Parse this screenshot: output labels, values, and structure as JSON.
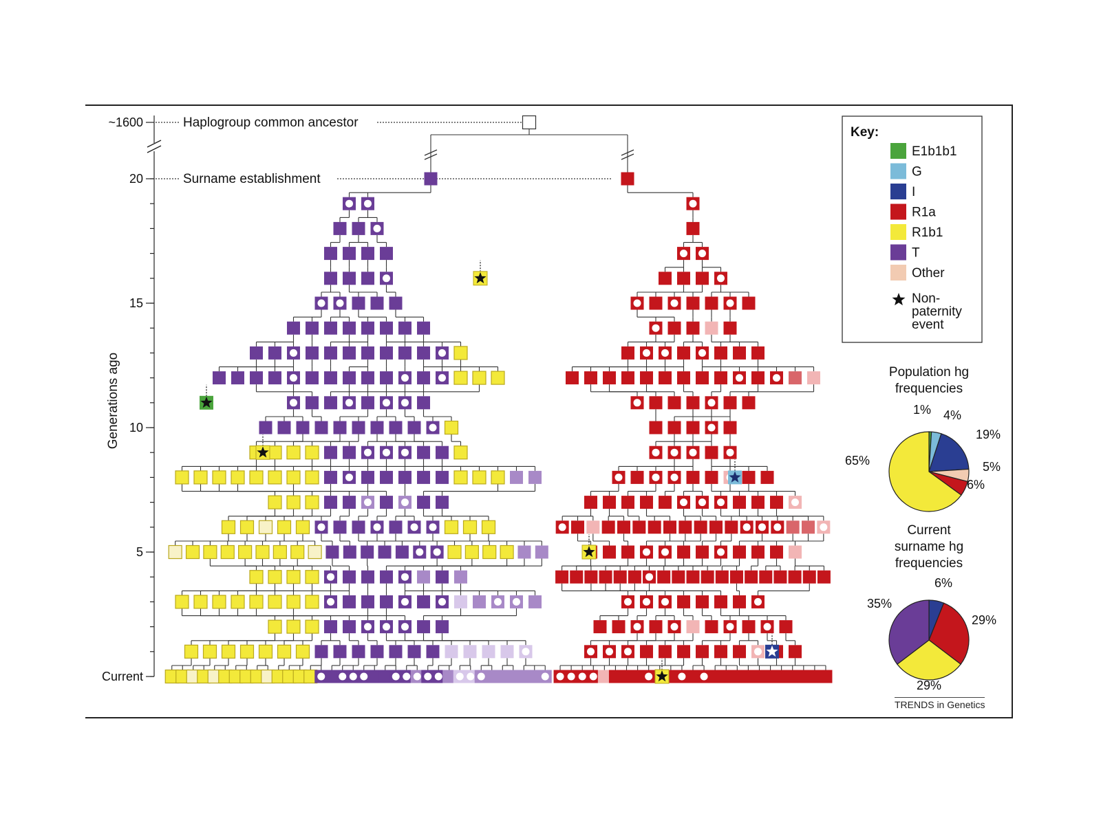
{
  "diagram": {
    "axis": {
      "label": "Generations ago",
      "ticks": [
        {
          "gen": 21,
          "label": "~1600"
        },
        {
          "gen": 20,
          "label": "20"
        },
        {
          "gen": 15,
          "label": "15"
        },
        {
          "gen": 10,
          "label": "10"
        },
        {
          "gen": 5,
          "label": "5"
        },
        {
          "gen": 0,
          "label": "Current"
        }
      ]
    },
    "annotations": {
      "ancestor": "Haplogroup common ancestor",
      "surname": "Surname establishment"
    },
    "colors": {
      "E1b1b1": "#4aa43c",
      "G": "#7bbbd9",
      "I": "#2a3e92",
      "R1a": "#c4161c",
      "R1b1": "#f3e93a",
      "T": "#6a3d97",
      "Other": "#f2cbb2",
      "T_light": "#a889c7",
      "T_pale": "#d8c8ea",
      "R1b1_pale": "#f8f2c8",
      "R1a_light": "#d9666a",
      "R1a_pale": "#f2b5b5"
    }
  },
  "key": {
    "title": "Key:",
    "items": [
      {
        "label": "E1b1b1",
        "color": "#4aa43c"
      },
      {
        "label": "G",
        "color": "#7bbbd9"
      },
      {
        "label": "I",
        "color": "#2a3e92"
      },
      {
        "label": "R1a",
        "color": "#c4161c"
      },
      {
        "label": "R1b1",
        "color": "#f3e93a"
      },
      {
        "label": "T",
        "color": "#6a3d97"
      },
      {
        "label": "Other",
        "color": "#f2cbb2"
      }
    ],
    "npe_lines": [
      "Non-",
      "paternity",
      "event"
    ]
  },
  "chart_data": [
    {
      "type": "pie",
      "title_lines": [
        "Population hg",
        "frequencies"
      ],
      "slices": [
        {
          "label": "E1b1b1",
          "value": 1,
          "text": "1%",
          "color": "#4aa43c"
        },
        {
          "label": "G",
          "value": 4,
          "text": "4%",
          "color": "#7bbbd9"
        },
        {
          "label": "I",
          "value": 19,
          "text": "19%",
          "color": "#2a3e92"
        },
        {
          "label": "Other",
          "value": 5,
          "text": "5%",
          "color": "#f2cbb2"
        },
        {
          "label": "R1a",
          "value": 6,
          "text": "6%",
          "color": "#c4161c"
        },
        {
          "label": "R1b1",
          "value": 65,
          "text": "65%",
          "color": "#f3e93a"
        }
      ]
    },
    {
      "type": "pie",
      "title_lines": [
        "Current",
        "surname hg",
        "frequencies"
      ],
      "slices": [
        {
          "label": "I",
          "value": 6,
          "text": "6%",
          "color": "#2a3e92"
        },
        {
          "label": "R1a",
          "value": 29,
          "text": "29%",
          "color": "#c4161c"
        },
        {
          "label": "R1b1",
          "value": 29,
          "text": "29%",
          "color": "#f3e93a"
        },
        {
          "label": "T",
          "value": 35,
          "text": "35%",
          "color": "#6a3d97"
        }
      ]
    }
  ],
  "footer": {
    "credit": "TRENDS in Genetics"
  }
}
